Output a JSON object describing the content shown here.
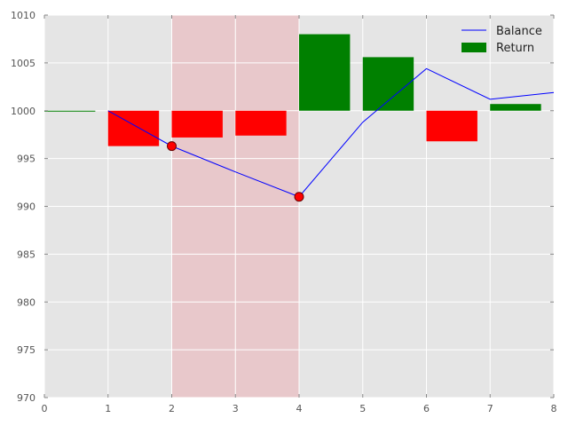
{
  "chart_data": {
    "type": "bar",
    "title": "",
    "xlabel": "",
    "ylabel": "",
    "xlim": [
      0,
      8
    ],
    "ylim": [
      970,
      1010
    ],
    "xticks": [
      "0",
      "1",
      "2",
      "3",
      "4",
      "5",
      "6",
      "7",
      "8"
    ],
    "yticks": [
      "970",
      "975",
      "980",
      "985",
      "990",
      "995",
      "1000",
      "1005",
      "1010"
    ],
    "grid": true,
    "legend_position": "top-right",
    "baseline": 1000,
    "shaded_region": {
      "x_start": 2,
      "x_end": 4,
      "color": "#e8c8cb"
    },
    "series": [
      {
        "name": "Balance",
        "type": "line",
        "color": "#0000ff",
        "x": [
          1,
          2,
          3,
          4,
          5,
          6,
          7,
          8
        ],
        "y": [
          1000,
          996.3,
          993.6,
          991.0,
          998.8,
          1004.4,
          1001.2,
          1001.9
        ]
      },
      {
        "name": "Return",
        "type": "bar",
        "legend_color": "#008000",
        "positive_color": "#008000",
        "negative_color": "#ff0000",
        "x": [
          0,
          1,
          2,
          3,
          4,
          5,
          6,
          7
        ],
        "width": 0.8,
        "values": [
          0,
          -3.7,
          -2.8,
          -2.6,
          8.0,
          5.6,
          -3.2,
          0.7
        ]
      }
    ],
    "markers": {
      "x": [
        2,
        4
      ],
      "y": [
        996.3,
        991.0
      ],
      "fill": "#ff0000",
      "edge": "#660000"
    },
    "legend": [
      {
        "label": "Balance",
        "kind": "line",
        "color": "#0000ff"
      },
      {
        "label": "Return",
        "kind": "patch",
        "color": "#008000"
      }
    ]
  }
}
